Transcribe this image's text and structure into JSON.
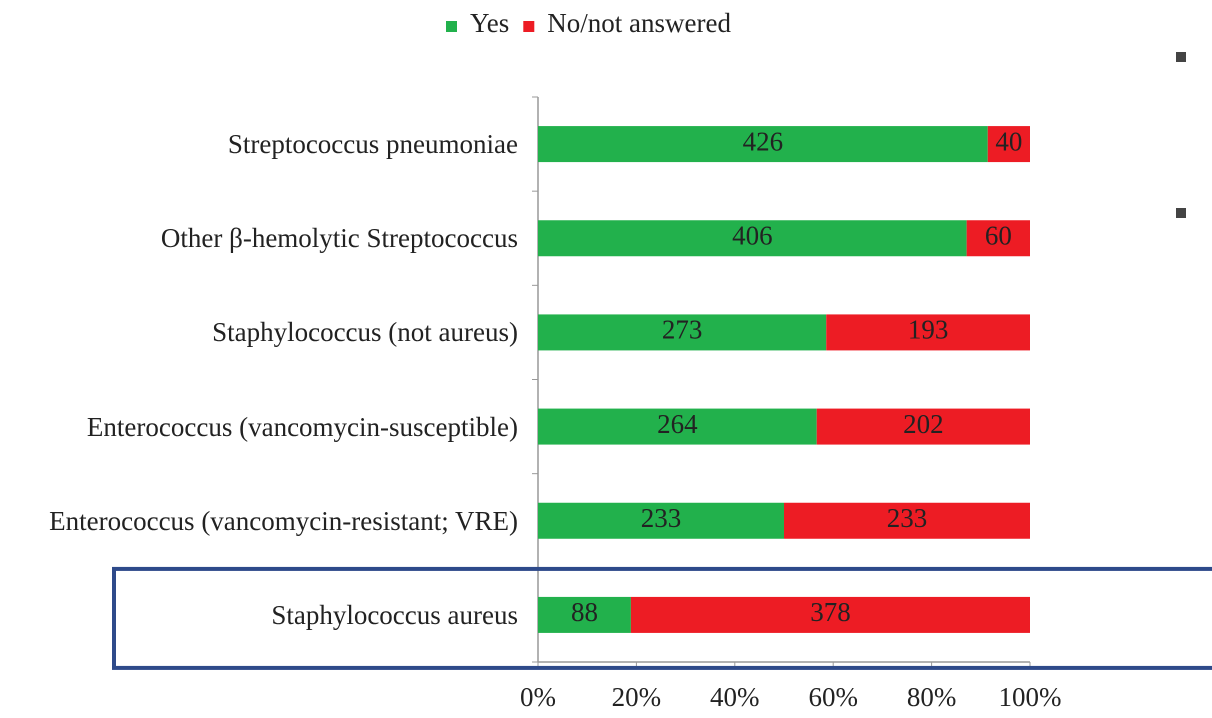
{
  "chart_data": {
    "type": "bar",
    "orientation": "horizontal",
    "stacked": true,
    "normalize": true,
    "categories": [
      "Streptococcus pneumoniae",
      "Other β-hemolytic Streptococcus",
      "Staphylococcus (not aureus)",
      "Enterococcus (vancomycin-susceptible)",
      "Enterococcus (vancomycin-resistant; VRE)",
      "Staphylococcus aureus"
    ],
    "series": [
      {
        "name": "Yes",
        "color": "#22b14c",
        "values": [
          426,
          406,
          273,
          264,
          233,
          88
        ]
      },
      {
        "name": "No/not answered",
        "color": "#ed1c24",
        "values": [
          40,
          60,
          193,
          202,
          233,
          378
        ]
      }
    ],
    "xlim": [
      0,
      100
    ],
    "xticks": [
      {
        "value": 0,
        "label": "0%"
      },
      {
        "value": 20,
        "label": "20%"
      },
      {
        "value": 40,
        "label": "40%"
      },
      {
        "value": 60,
        "label": "60%"
      },
      {
        "value": 80,
        "label": "80%"
      },
      {
        "value": 100,
        "label": "100%"
      }
    ],
    "legend": "top",
    "highlight_category": 5
  }
}
